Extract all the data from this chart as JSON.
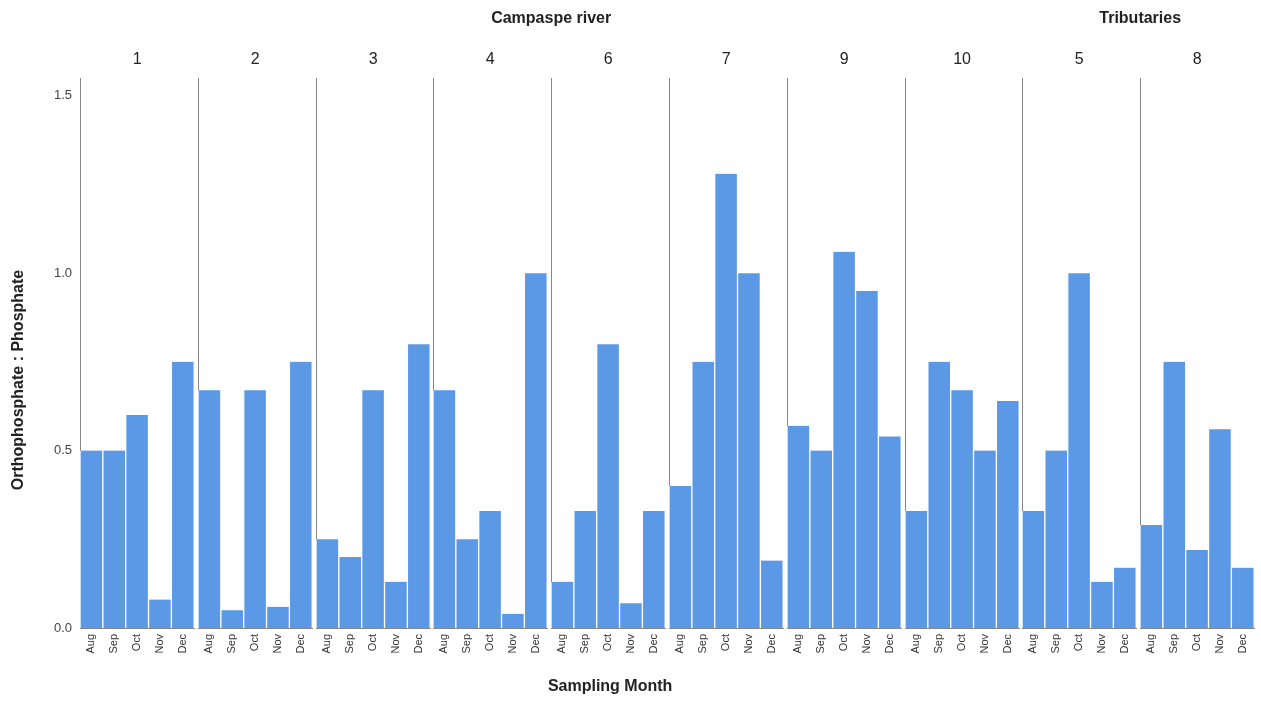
{
  "chart_data": [
    {
      "type": "bar",
      "title": "1",
      "ylabel": "Orthophosphate : Phosphate",
      "annotations": [
        "Campaspe river"
      ],
      "categories": [
        "Aug",
        "Sep",
        "Oct",
        "Nov",
        "Dec"
      ],
      "values": [
        0.5,
        0.5,
        0.6,
        0.08,
        0.75
      ],
      "color": "#5b98e5",
      "ylim": [
        0,
        1.55
      ],
      "yticks": [
        {
          "value": 0,
          "label": "0.0"
        },
        {
          "value": 0.5,
          "label": "0.5"
        },
        {
          "value": 1,
          "label": "1.0"
        },
        {
          "value": 1.5,
          "label": "1.5"
        }
      ],
      "grid": false,
      "legend": false
    },
    {
      "type": "bar",
      "title": "2",
      "categories": [
        "Aug",
        "Sep",
        "Oct",
        "Nov",
        "Dec"
      ],
      "values": [
        0.67,
        0.05,
        0.67,
        0.06,
        0.75
      ],
      "color": "#5b98e5",
      "ylim": [
        0,
        1.55
      ],
      "tick_labels": "x",
      "grid": false,
      "legend": false
    },
    {
      "type": "bar",
      "title": "3",
      "categories": [
        "Aug",
        "Sep",
        "Oct",
        "Nov",
        "Dec"
      ],
      "values": [
        0.25,
        0.2,
        0.67,
        0.13,
        0.8
      ],
      "color": "#5b98e5",
      "ylim": [
        0,
        1.55
      ],
      "tick_labels": "x",
      "grid": false,
      "legend": false
    },
    {
      "type": "bar",
      "title": "4",
      "categories": [
        "Aug",
        "Sep",
        "Oct",
        "Nov",
        "Dec"
      ],
      "values": [
        0.67,
        0.25,
        0.33,
        0.04,
        1.0
      ],
      "color": "#5b98e5",
      "ylim": [
        0,
        1.55
      ],
      "tick_labels": "x",
      "grid": false,
      "legend": false
    },
    {
      "type": "bar",
      "title": "6",
      "xlabel": "Sampling Month",
      "categories": [
        "Aug",
        "Sep",
        "Oct",
        "Nov",
        "Dec"
      ],
      "values": [
        0.13,
        0.33,
        0.8,
        0.07,
        0.33
      ],
      "color": "#5b98e5",
      "ylim": [
        0,
        1.55
      ],
      "tick_labels": "x",
      "grid": false,
      "legend": false
    },
    {
      "type": "bar",
      "title": "7",
      "categories": [
        "Aug",
        "Sep",
        "Oct",
        "Nov",
        "Dec"
      ],
      "values": [
        0.4,
        0.75,
        1.28,
        1.0,
        0.19
      ],
      "color": "#5b98e5",
      "ylim": [
        0,
        1.55
      ],
      "tick_labels": "x",
      "grid": false,
      "legend": false
    },
    {
      "type": "bar",
      "title": "9",
      "categories": [
        "Aug",
        "Sep",
        "Oct",
        "Nov",
        "Dec"
      ],
      "values": [
        0.57,
        0.5,
        1.06,
        0.95,
        0.54
      ],
      "color": "#5b98e5",
      "ylim": [
        0,
        1.55
      ],
      "tick_labels": "x",
      "grid": false,
      "legend": false
    },
    {
      "type": "bar",
      "title": "10",
      "categories": [
        "Aug",
        "Sep",
        "Oct",
        "Nov",
        "Dec"
      ],
      "values": [
        0.33,
        0.75,
        0.67,
        0.5,
        0.64
      ],
      "color": "#5b98e5",
      "ylim": [
        0,
        1.55
      ],
      "tick_labels": "x",
      "grid": false,
      "legend": false
    },
    {
      "type": "bar",
      "title": "5",
      "annotations": [
        "Tributaries"
      ],
      "categories": [
        "Aug",
        "Sep",
        "Oct",
        "Nov",
        "Dec"
      ],
      "values": [
        0.33,
        0.5,
        1.0,
        0.13,
        0.17
      ],
      "color": "#5b98e5",
      "ylim": [
        0,
        1.55
      ],
      "tick_labels": "x",
      "grid": false,
      "legend": false
    },
    {
      "type": "bar",
      "title": "8",
      "categories": [
        "Aug",
        "Sep",
        "Oct",
        "Nov",
        "Dec"
      ],
      "values": [
        0.29,
        0.75,
        0.22,
        0.56,
        0.17
      ],
      "color": "#5b98e5",
      "ylim": [
        0,
        1.55
      ],
      "tick_labels": "x",
      "grid": false,
      "legend": false
    }
  ]
}
